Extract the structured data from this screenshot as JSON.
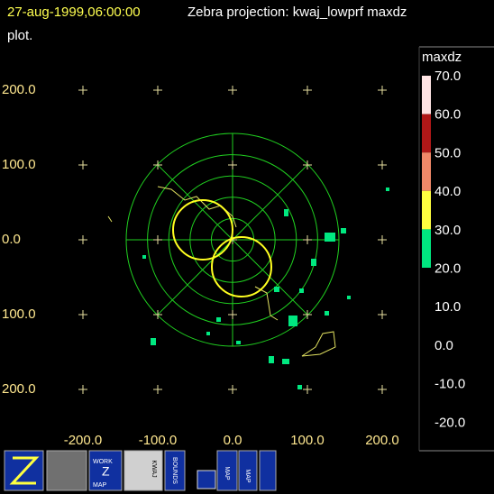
{
  "header": {
    "timestamp": "27-aug-1999,06:00:00",
    "title": "Zebra projection: kwaj_lowprf maxdz",
    "title_cont": "plot."
  },
  "plot": {
    "y_labels": [
      "200.0",
      "100.0",
      "0.0",
      "100.0",
      "200.0"
    ],
    "x_labels": [
      "-200.0",
      "-100.0",
      "0.0",
      "100.0",
      "200.0"
    ]
  },
  "colorbar": {
    "label": "maxdz",
    "ticks": [
      "70.0",
      "60.0",
      "50.0",
      "40.0",
      "30.0",
      "20.0",
      "10.0",
      "0.0",
      "-10.0",
      "-20.0"
    ],
    "colors": [
      "#ffe4e4",
      "#b01818",
      "#f08868",
      "#ffff40",
      "#00e880"
    ]
  },
  "toolbar": {
    "work": "WORK",
    "z": "Z",
    "map": "MAP",
    "kwaj": "KWAJ",
    "bounds": "BOUNDS",
    "map2": "MAP",
    "map3": "MAP"
  }
}
